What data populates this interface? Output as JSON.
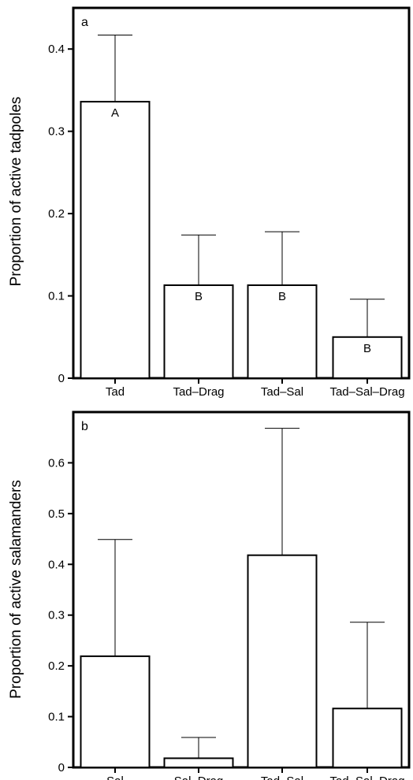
{
  "chart_data": [
    {
      "type": "bar",
      "panel_label": "a",
      "ylabel": "Proportion of active tadpoles",
      "xlabel": "",
      "ylim": [
        0,
        0.45
      ],
      "yticks": [
        0,
        0.1,
        0.2,
        0.3,
        0.4
      ],
      "ytick_labels": [
        "0",
        "0.1",
        "0.2",
        "0.3",
        "0.4"
      ],
      "categories": [
        "Tad",
        "Tad–Drag",
        "Tad–Sal",
        "Tad–Sal–Drag"
      ],
      "values": [
        0.336,
        0.113,
        0.113,
        0.05
      ],
      "error_upper": [
        0.417,
        0.174,
        0.178,
        0.096
      ],
      "group_letters": [
        "A",
        "B",
        "B",
        "B"
      ],
      "grid": false,
      "colors": {
        "bar_fill": "#ffffff",
        "bar_stroke": "#000000"
      }
    },
    {
      "type": "bar",
      "panel_label": "b",
      "ylabel": "Proportion of active salamanders",
      "xlabel": "",
      "ylim": [
        0,
        0.7
      ],
      "yticks": [
        0,
        0.1,
        0.2,
        0.3,
        0.4,
        0.5,
        0.6
      ],
      "ytick_labels": [
        "0",
        "0.1",
        "0.2",
        "0.3",
        "0.4",
        "0.5",
        "0.6"
      ],
      "categories": [
        "Sal",
        "Sal–Drag",
        "Tad–Sal",
        "Tad–Sal–Drag"
      ],
      "values": [
        0.219,
        0.018,
        0.418,
        0.116
      ],
      "error_upper": [
        0.449,
        0.059,
        0.668,
        0.286
      ],
      "group_letters": [],
      "grid": false,
      "colors": {
        "bar_fill": "#ffffff",
        "bar_stroke": "#000000"
      }
    }
  ]
}
